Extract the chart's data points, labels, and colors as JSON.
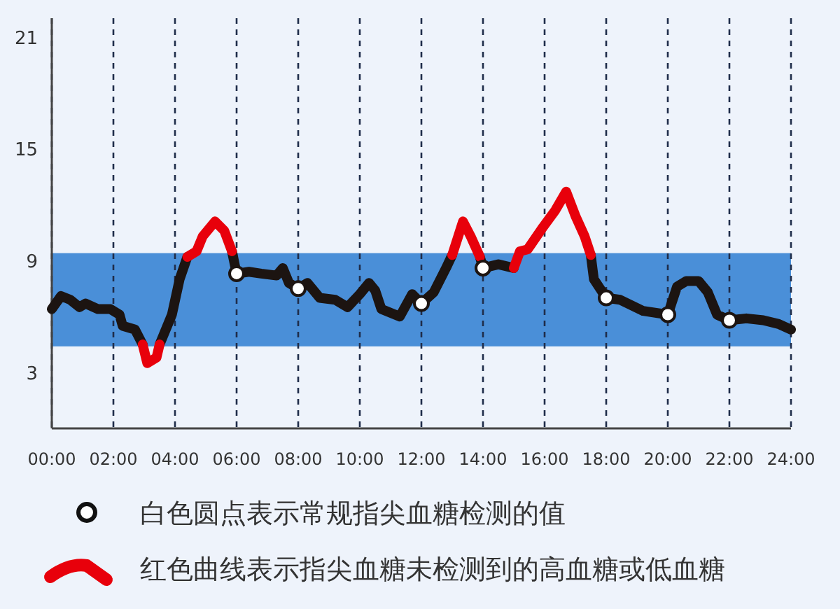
{
  "chart_data": {
    "type": "line",
    "xlim": [
      0,
      24
    ],
    "ylim": [
      0,
      22
    ],
    "xticks": [
      {
        "value": 0,
        "label": "00:00"
      },
      {
        "value": 2,
        "label": "02:00"
      },
      {
        "value": 4,
        "label": "04:00"
      },
      {
        "value": 6,
        "label": "06:00"
      },
      {
        "value": 8,
        "label": "08:00"
      },
      {
        "value": 10,
        "label": "10:00"
      },
      {
        "value": 12,
        "label": "12:00"
      },
      {
        "value": 14,
        "label": "14:00"
      },
      {
        "value": 16,
        "label": "16:00"
      },
      {
        "value": 18,
        "label": "18:00"
      },
      {
        "value": 20,
        "label": "20:00"
      },
      {
        "value": 22,
        "label": "22:00"
      },
      {
        "value": 24,
        "label": "24:00"
      }
    ],
    "yticks": [
      3,
      9,
      15,
      21
    ],
    "grid": "x",
    "legend": "bottom",
    "line_style": "solid",
    "bands": [
      {
        "axis": "y",
        "from": 4.4,
        "to": 9.4,
        "color": "#4a8fd8"
      }
    ],
    "x": [
      0,
      0.3,
      0.6,
      0.9,
      1.1,
      1.5,
      1.9,
      2.2,
      2.3,
      2.7,
      2.95,
      3.1,
      3.4,
      3.5,
      3.9,
      4.15,
      4.4,
      4.7,
      4.9,
      5.3,
      5.6,
      5.85,
      6.0,
      6.4,
      6.8,
      7.3,
      7.5,
      7.7,
      8.0,
      8.3,
      8.7,
      9.2,
      9.6,
      10.0,
      10.3,
      10.5,
      10.7,
      11.3,
      11.7,
      12.0,
      12.4,
      12.8,
      13.0,
      13.35,
      13.6,
      13.9,
      14.0,
      14.5,
      15.0,
      15.2,
      15.45,
      15.95,
      16.35,
      16.7,
      17.0,
      17.3,
      17.5,
      17.6,
      18.0,
      18.45,
      19.2,
      20.0,
      20.3,
      20.6,
      21.0,
      21.3,
      21.6,
      22.0,
      22.55,
      23.1,
      23.6,
      24.0
    ],
    "series": [
      {
        "color": "#1c1411",
        "values": [
          6.4,
          7.1,
          6.9,
          6.5,
          6.7,
          6.4,
          6.4,
          6.1,
          5.5,
          5.3,
          4.5,
          null,
          null,
          4.5,
          6.1,
          8.0,
          9.2,
          null,
          null,
          null,
          null,
          9.5,
          8.3,
          8.4,
          8.3,
          8.2,
          8.6,
          7.8,
          7.5,
          7.8,
          7.0,
          6.9,
          6.5,
          7.2,
          7.8,
          7.4,
          6.4,
          6.0,
          7.2,
          6.7,
          7.3,
          8.6,
          9.3,
          null,
          null,
          9.2,
          8.6,
          8.8,
          8.6,
          null,
          null,
          null,
          null,
          null,
          null,
          null,
          9.3,
          8.0,
          7.0,
          6.9,
          6.3,
          6.1,
          7.6,
          7.9,
          7.9,
          7.3,
          6.1,
          5.8,
          5.9,
          5.8,
          5.6,
          5.3
        ]
      },
      {
        "name": "红色曲线表示指尖血糖未检测到的高血糖或低血糖",
        "color": "#e8000b",
        "values": [
          null,
          null,
          null,
          null,
          null,
          null,
          null,
          null,
          null,
          null,
          4.5,
          3.5,
          3.8,
          4.5,
          null,
          null,
          9.2,
          9.5,
          10.3,
          11.1,
          10.6,
          9.5,
          null,
          null,
          null,
          null,
          null,
          null,
          null,
          null,
          null,
          null,
          null,
          null,
          null,
          null,
          null,
          null,
          null,
          null,
          null,
          null,
          9.3,
          11.1,
          10.3,
          9.2,
          null,
          null,
          8.6,
          9.5,
          9.6,
          10.8,
          11.7,
          12.7,
          11.4,
          10.3,
          9.3,
          null,
          null,
          null,
          null,
          null,
          null,
          null,
          null,
          null,
          null,
          null,
          null,
          null,
          null,
          null
        ]
      },
      {
        "type": "scatter",
        "name": "白色圆点表示常规指尖血糖检测的值",
        "color": "#ffffff",
        "marker": "circle",
        "x": [
          6,
          8,
          12,
          14,
          18,
          20,
          22
        ],
        "values": [
          8.3,
          7.5,
          6.7,
          8.6,
          7.0,
          6.1,
          5.8
        ]
      }
    ]
  }
}
